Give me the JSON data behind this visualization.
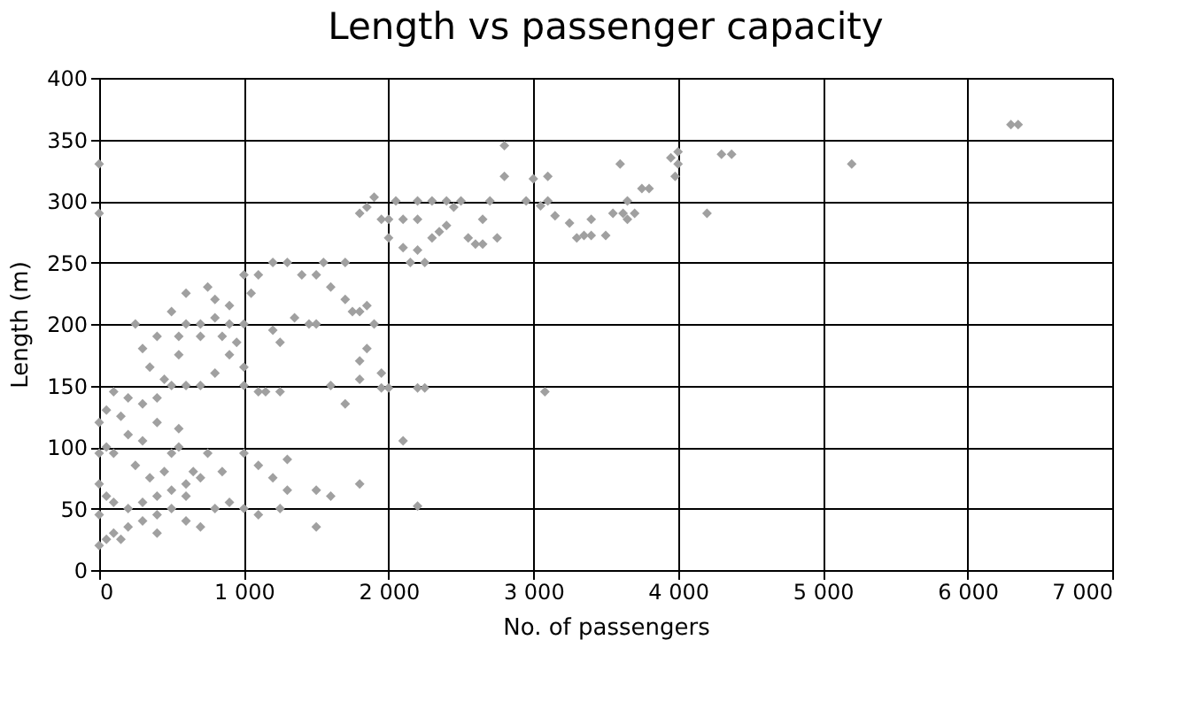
{
  "chart_data": {
    "type": "scatter",
    "title": "Length vs passenger capacity",
    "xlabel": "No. of passengers",
    "ylabel": "Length (m)",
    "xlim": [
      0,
      7000
    ],
    "ylim": [
      0,
      400
    ],
    "xticks": [
      0,
      {
        "value": 1000,
        "label": "1 000"
      },
      {
        "value": 2000,
        "label": "2 000"
      },
      {
        "value": 3000,
        "label": "3 000"
      },
      {
        "value": 4000,
        "label": "4 000"
      },
      {
        "value": 5000,
        "label": "5 000"
      },
      {
        "value": 6000,
        "label": "6 000"
      },
      {
        "value": 7000,
        "label": "7 000"
      }
    ],
    "yticks": [
      0,
      50,
      100,
      150,
      200,
      250,
      300,
      350,
      400
    ],
    "grid": true,
    "marker": "diamond",
    "series": [
      {
        "color": "#a0a0a0",
        "x": [
          0,
          0,
          6300,
          6350,
          5200,
          4200,
          4300,
          4370,
          4000,
          4000,
          3980,
          3950,
          3800,
          3750,
          3650,
          3600,
          3550,
          3620,
          3650,
          3700,
          3400,
          3350,
          3300,
          3400,
          3500,
          3250,
          3150,
          3100,
          3000,
          3050,
          3100,
          3080,
          2950,
          2800,
          2700,
          2650,
          2750,
          2600,
          2650,
          2550,
          2500,
          2450,
          2400,
          2350,
          2300,
          2200,
          2250,
          2150,
          2100,
          2000,
          2050,
          1950,
          1850,
          1800,
          1900,
          2200,
          2300,
          2400,
          2200,
          2100,
          2000,
          1700,
          1550,
          1500,
          1400,
          1300,
          1200,
          1100,
          1000,
          1050,
          1600,
          1700,
          1750,
          1850,
          1900,
          1800,
          1500,
          1450,
          1350,
          1250,
          1200,
          1800,
          1850,
          1950,
          1800,
          1700,
          1600,
          1100,
          1150,
          1250,
          1000,
          1950,
          2000,
          2200,
          2250,
          2100,
          1800,
          1500,
          1600,
          1500,
          2200,
          1200,
          1000,
          1100,
          1300,
          1300,
          1250,
          1100,
          1000,
          900,
          800,
          850,
          750,
          700,
          650,
          600,
          500,
          400,
          300,
          200,
          100,
          50,
          0,
          0,
          50,
          100,
          200,
          300,
          400,
          500,
          600,
          0,
          0,
          50,
          100,
          200,
          300,
          400,
          500,
          550,
          0,
          50,
          100,
          200,
          300,
          400,
          500,
          600,
          700,
          800,
          900,
          1000,
          850,
          700,
          600,
          550,
          450,
          400,
          300,
          250,
          500,
          600,
          700,
          800,
          900,
          950,
          1000,
          900,
          800,
          750,
          550,
          350,
          150,
          250,
          350,
          450,
          700,
          400,
          150,
          600,
          550,
          2800
        ],
        "values": [
          330,
          290,
          362,
          362,
          330,
          290,
          338,
          338,
          340,
          330,
          320,
          335,
          310,
          310,
          300,
          330,
          290,
          290,
          285,
          290,
          285,
          272,
          270,
          272,
          272,
          282,
          288,
          320,
          318,
          296,
          300,
          145,
          300,
          320,
          300,
          285,
          270,
          265,
          265,
          270,
          300,
          295,
          280,
          275,
          270,
          260,
          250,
          250,
          262,
          285,
          300,
          285,
          295,
          290,
          303,
          285,
          300,
          300,
          300,
          285,
          270,
          250,
          250,
          240,
          240,
          250,
          250,
          240,
          240,
          225,
          230,
          220,
          210,
          215,
          200,
          210,
          200,
          200,
          205,
          185,
          195,
          170,
          180,
          160,
          155,
          135,
          150,
          145,
          145,
          145,
          150,
          148,
          148,
          148,
          148,
          105,
          70,
          65,
          60,
          35,
          52,
          75,
          95,
          85,
          90,
          65,
          50,
          45,
          50,
          55,
          50,
          80,
          95,
          75,
          80,
          60,
          50,
          45,
          40,
          35,
          30,
          25,
          20,
          45,
          60,
          55,
          50,
          55,
          60,
          65,
          70,
          70,
          95,
          100,
          95,
          110,
          105,
          120,
          95,
          115,
          120,
          130,
          145,
          140,
          135,
          140,
          150,
          150,
          150,
          160,
          175,
          165,
          190,
          190,
          200,
          175,
          155,
          190,
          180,
          200,
          210,
          225,
          200,
          205,
          200,
          185,
          200,
          215,
          220,
          230,
          190,
          165,
          125,
          85,
          75,
          80,
          35,
          30,
          25,
          40,
          100,
          345
        ]
      }
    ]
  }
}
